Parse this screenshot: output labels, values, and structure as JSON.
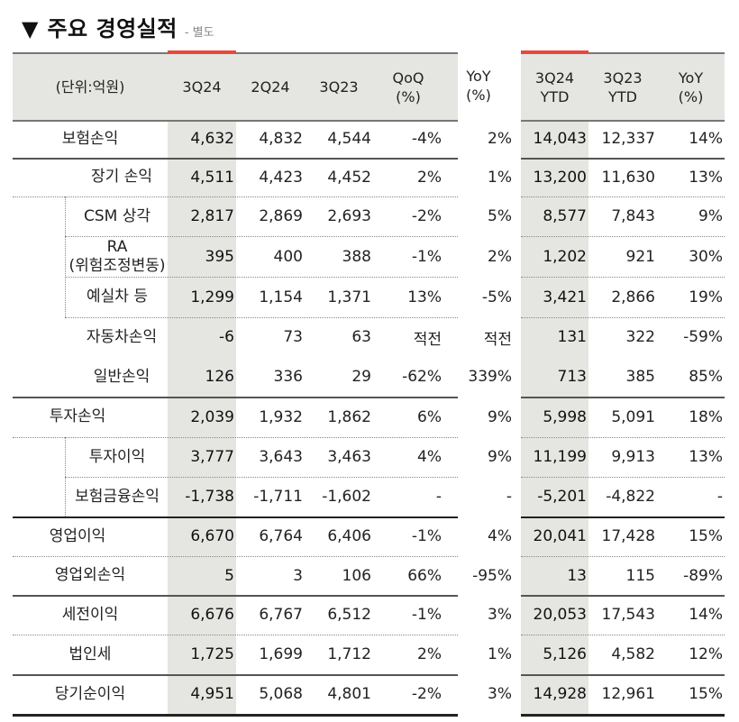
{
  "header": {
    "triangle_icon": "▼",
    "title": "주요 경영실적",
    "subtitle": "- 별도"
  },
  "table": {
    "unit_label": "(단위:억원)",
    "columns_quarter": [
      "3Q24",
      "2Q24",
      "3Q23",
      "QoQ\n(%)",
      "YoY\n(%)"
    ],
    "columns_ytd": [
      "3Q24\nYTD",
      "3Q23\nYTD",
      "YoY\n(%)"
    ],
    "highlight_color": "#e5e5e2",
    "accent_color": "#e8483a",
    "rows": [
      {
        "label": "보험손익",
        "q": [
          "4,632",
          "4,832",
          "4,544",
          "-4%",
          "2%"
        ],
        "ytd": [
          "14,043",
          "12,337",
          "14%"
        ]
      },
      {
        "label": "장기 손익",
        "q": [
          "4,511",
          "4,423",
          "4,452",
          "2%",
          "1%"
        ],
        "ytd": [
          "13,200",
          "11,630",
          "13%"
        ]
      },
      {
        "label": "CSM 상각",
        "q": [
          "2,817",
          "2,869",
          "2,693",
          "-2%",
          "5%"
        ],
        "ytd": [
          "8,577",
          "7,843",
          "9%"
        ]
      },
      {
        "label": "RA\n(위험조정변동)",
        "q": [
          "395",
          "400",
          "388",
          "-1%",
          "2%"
        ],
        "ytd": [
          "1,202",
          "921",
          "30%"
        ]
      },
      {
        "label": "예실차 등",
        "q": [
          "1,299",
          "1,154",
          "1,371",
          "13%",
          "-5%"
        ],
        "ytd": [
          "3,421",
          "2,866",
          "19%"
        ]
      },
      {
        "label": "자동차손익",
        "q": [
          "-6",
          "73",
          "63",
          "적전",
          "적전"
        ],
        "ytd": [
          "131",
          "322",
          "-59%"
        ]
      },
      {
        "label": "일반손익",
        "q": [
          "126",
          "336",
          "29",
          "-62%",
          "339%"
        ],
        "ytd": [
          "713",
          "385",
          "85%"
        ]
      },
      {
        "label": "투자손익",
        "q": [
          "2,039",
          "1,932",
          "1,862",
          "6%",
          "9%"
        ],
        "ytd": [
          "5,998",
          "5,091",
          "18%"
        ]
      },
      {
        "label": "투자이익",
        "q": [
          "3,777",
          "3,643",
          "3,463",
          "4%",
          "9%"
        ],
        "ytd": [
          "11,199",
          "9,913",
          "13%"
        ]
      },
      {
        "label": "보험금융손익",
        "q": [
          "-1,738",
          "-1,711",
          "-1,602",
          "-",
          "-"
        ],
        "ytd": [
          "-5,201",
          "-4,822",
          "-"
        ]
      },
      {
        "label": "영업이익",
        "q": [
          "6,670",
          "6,764",
          "6,406",
          "-1%",
          "4%"
        ],
        "ytd": [
          "20,041",
          "17,428",
          "15%"
        ]
      },
      {
        "label": "영업외손익",
        "q": [
          "5",
          "3",
          "106",
          "66%",
          "-95%"
        ],
        "ytd": [
          "13",
          "115",
          "-89%"
        ]
      },
      {
        "label": "세전이익",
        "q": [
          "6,676",
          "6,767",
          "6,512",
          "-1%",
          "3%"
        ],
        "ytd": [
          "20,053",
          "17,543",
          "14%"
        ]
      },
      {
        "label": "법인세",
        "q": [
          "1,725",
          "1,699",
          "1,712",
          "2%",
          "1%"
        ],
        "ytd": [
          "5,126",
          "4,582",
          "12%"
        ]
      },
      {
        "label": "당기순이익",
        "q": [
          "4,951",
          "5,068",
          "4,801",
          "-2%",
          "3%"
        ],
        "ytd": [
          "14,928",
          "12,961",
          "15%"
        ]
      }
    ]
  }
}
